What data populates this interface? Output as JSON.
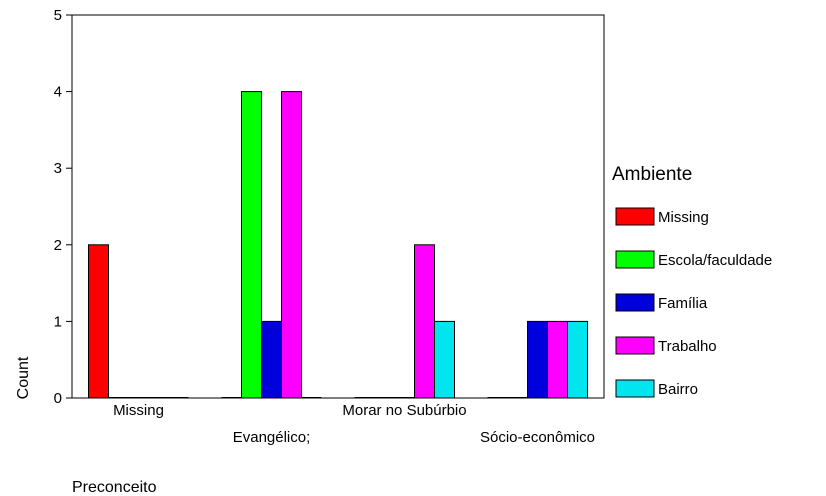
{
  "chart_data": {
    "type": "bar",
    "xlabel": "Preconceito",
    "ylabel": "Count",
    "ylim": [
      0,
      5
    ],
    "yticks": [
      0,
      1,
      2,
      3,
      4,
      5
    ],
    "grid": false,
    "legend_position": "right",
    "legend_title": "Ambiente",
    "categories": [
      "Missing",
      "Evangélico;",
      "Morar no Subúrbio",
      "Sócio-econômico"
    ],
    "series": [
      {
        "name": "Missing",
        "color": "#ff0000",
        "values": [
          2,
          0,
          0,
          0
        ]
      },
      {
        "name": "Escola/faculdade",
        "color": "#00ff00",
        "values": [
          0,
          4,
          0,
          0
        ]
      },
      {
        "name": "Família",
        "color": "#0000dd",
        "values": [
          0,
          1,
          0,
          1
        ]
      },
      {
        "name": "Trabalho",
        "color": "#ff00ff",
        "values": [
          0,
          4,
          2,
          1
        ]
      },
      {
        "name": "Bairro",
        "color": "#00e5ee",
        "values": [
          0,
          0,
          1,
          1
        ]
      }
    ]
  }
}
